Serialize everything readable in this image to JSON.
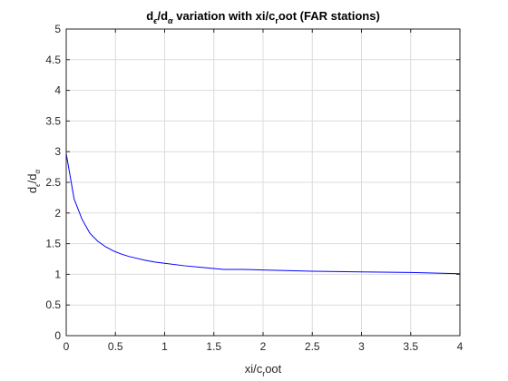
{
  "chart_data": {
    "type": "line",
    "title_main": "d",
    "title_sub1": "ϵ",
    "title_mid": "/d",
    "title_sub2": "α",
    "title_rest1": " variation with xi/c",
    "title_sub3": "r",
    "title_rest2": "oot (FAR stations)",
    "xlabel_main": "xi/c",
    "xlabel_sub": "r",
    "xlabel_rest": "oot",
    "ylabel_main": "d",
    "ylabel_sub1": "ϵ",
    "ylabel_mid": "/d",
    "ylabel_sub2": "α",
    "xlim": [
      0,
      4
    ],
    "ylim": [
      0,
      5
    ],
    "xticks": [
      0,
      0.5,
      1,
      1.5,
      2,
      2.5,
      3,
      3.5,
      4
    ],
    "xtick_labels": [
      "0",
      "0.5",
      "1",
      "1.5",
      "2",
      "2.5",
      "3",
      "3.5",
      "4"
    ],
    "yticks": [
      0,
      0.5,
      1,
      1.5,
      2,
      2.5,
      3,
      3.5,
      4,
      4.5,
      5
    ],
    "ytick_labels": [
      "0",
      "0.5",
      "1",
      "1.5",
      "2",
      "2.5",
      "3",
      "3.5",
      "4",
      "4.5",
      "5"
    ],
    "grid": true,
    "series": [
      {
        "color": "#0000ff",
        "x": [
          0,
          0.08,
          0.16,
          0.24,
          0.32,
          0.4,
          0.48,
          0.56,
          0.64,
          0.72,
          0.8,
          0.9,
          1.0,
          1.2,
          1.4,
          1.6,
          1.8,
          2.0,
          2.5,
          3.0,
          3.5,
          4.0
        ],
        "y": [
          2.97,
          2.23,
          1.9,
          1.67,
          1.54,
          1.45,
          1.38,
          1.33,
          1.29,
          1.26,
          1.23,
          1.2,
          1.18,
          1.14,
          1.11,
          1.08,
          1.08,
          1.07,
          1.05,
          1.04,
          1.03,
          1.01
        ]
      }
    ]
  }
}
